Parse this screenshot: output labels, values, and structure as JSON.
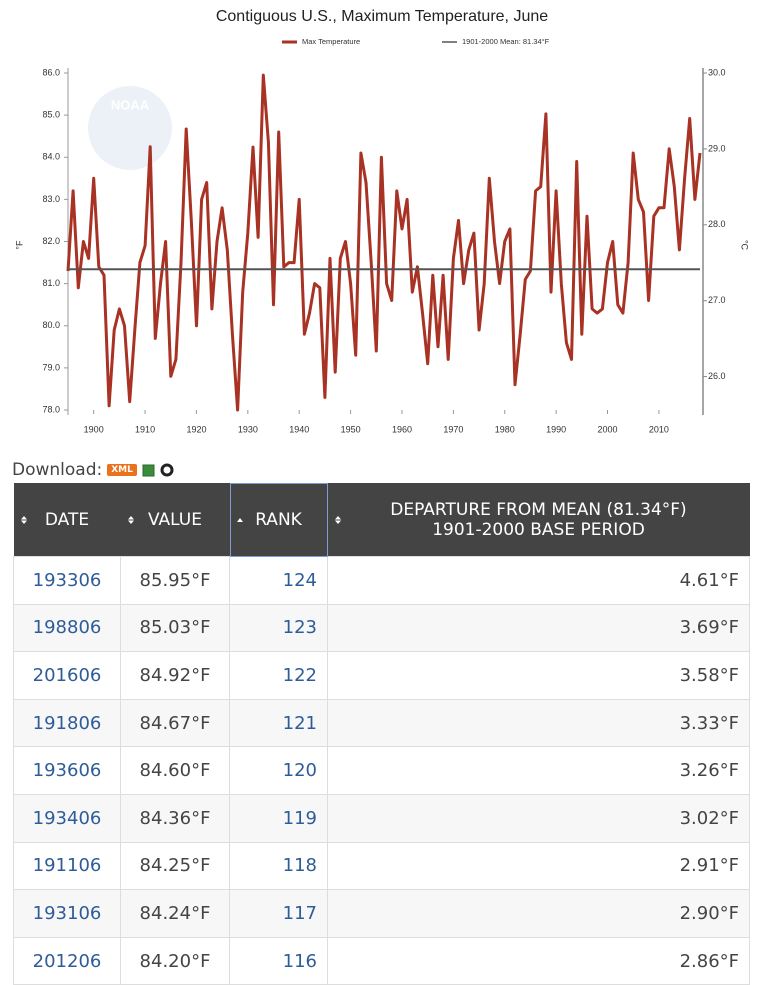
{
  "chart_data": {
    "type": "line",
    "title": "Contiguous U.S., Maximum Temperature, June",
    "ylabel": "°F",
    "y2label": "°C",
    "watermark": "NOAA",
    "x": [
      1895,
      1896,
      1897,
      1898,
      1899,
      1900,
      1901,
      1902,
      1903,
      1904,
      1905,
      1906,
      1907,
      1908,
      1909,
      1910,
      1911,
      1912,
      1913,
      1914,
      1915,
      1916,
      1917,
      1918,
      1919,
      1920,
      1921,
      1922,
      1923,
      1924,
      1925,
      1926,
      1927,
      1928,
      1929,
      1930,
      1931,
      1932,
      1933,
      1934,
      1935,
      1936,
      1937,
      1938,
      1939,
      1940,
      1941,
      1942,
      1943,
      1944,
      1945,
      1946,
      1947,
      1948,
      1949,
      1950,
      1951,
      1952,
      1953,
      1954,
      1955,
      1956,
      1957,
      1958,
      1959,
      1960,
      1961,
      1962,
      1963,
      1964,
      1965,
      1966,
      1967,
      1968,
      1969,
      1970,
      1971,
      1972,
      1973,
      1974,
      1975,
      1976,
      1977,
      1978,
      1979,
      1980,
      1981,
      1982,
      1983,
      1984,
      1985,
      1986,
      1987,
      1988,
      1989,
      1990,
      1991,
      1992,
      1993,
      1994,
      1995,
      1996,
      1997,
      1998,
      1999,
      2000,
      2001,
      2002,
      2003,
      2004,
      2005,
      2006,
      2007,
      2008,
      2009,
      2010,
      2011,
      2012,
      2013,
      2014,
      2015,
      2016,
      2017,
      2018
    ],
    "series": [
      {
        "name": "Max Temperature",
        "color": "#a83223",
        "values": [
          81.3,
          83.2,
          80.9,
          82.0,
          81.6,
          83.5,
          81.4,
          81.2,
          78.1,
          79.9,
          80.4,
          80.0,
          78.2,
          79.9,
          81.5,
          81.9,
          84.25,
          79.7,
          81.0,
          82.0,
          78.8,
          79.2,
          81.5,
          84.67,
          82.5,
          80.0,
          83.0,
          83.4,
          80.4,
          82.0,
          82.8,
          81.8,
          79.8,
          78.0,
          80.8,
          82.2,
          84.24,
          82.1,
          85.95,
          84.36,
          80.5,
          84.6,
          81.4,
          81.5,
          81.5,
          83.0,
          79.8,
          80.3,
          81.0,
          80.9,
          78.3,
          81.6,
          78.9,
          81.6,
          82.0,
          81.0,
          79.3,
          84.1,
          83.4,
          81.5,
          79.4,
          84.0,
          81.0,
          80.6,
          83.2,
          82.3,
          83.0,
          80.8,
          81.4,
          80.3,
          79.1,
          81.2,
          79.5,
          81.2,
          79.2,
          81.6,
          82.5,
          81.0,
          81.8,
          82.2,
          79.9,
          81.0,
          83.5,
          82.0,
          81.0,
          82.0,
          82.3,
          78.6,
          79.8,
          81.1,
          81.3,
          83.2,
          83.3,
          85.03,
          80.8,
          83.2,
          81.0,
          79.6,
          79.2,
          83.9,
          79.8,
          82.6,
          80.4,
          80.3,
          80.4,
          81.5,
          82.0,
          80.5,
          80.3,
          81.5,
          84.1,
          83.0,
          82.7,
          80.6,
          82.6,
          82.8,
          82.8,
          84.2,
          83.3,
          81.8,
          83.5,
          84.92,
          83.0,
          84.1
        ]
      }
    ],
    "mean_value": 81.34,
    "mean_label": "1901-2000 Mean: 81.34°F",
    "mean_color": "#555555",
    "xlim": [
      1895,
      2018
    ],
    "xticks": [
      1900,
      1910,
      1920,
      1930,
      1940,
      1950,
      1960,
      1970,
      1980,
      1990,
      2000,
      2010
    ],
    "ylim": [
      78,
      86
    ],
    "yticks": [
      {
        "value": 78,
        "label": "78.0"
      },
      {
        "value": 79,
        "label": "79.0"
      },
      {
        "value": 80,
        "label": "80.0"
      },
      {
        "value": 81,
        "label": "81.0"
      },
      {
        "value": 82,
        "label": "82.0"
      },
      {
        "value": 83,
        "label": "83.0"
      },
      {
        "value": 84,
        "label": "84.0"
      },
      {
        "value": 85,
        "label": "85.0"
      },
      {
        "value": 86,
        "label": "86.0"
      }
    ],
    "y2lim": [
      25.56,
      30
    ],
    "y2ticks": [
      {
        "value": 26,
        "label": "26.0"
      },
      {
        "value": 27,
        "label": "27.0"
      },
      {
        "value": 28,
        "label": "28.0"
      },
      {
        "value": 29,
        "label": "29.0"
      },
      {
        "value": 30,
        "label": "30.0"
      }
    ],
    "grid": false
  },
  "download": {
    "label": "Download:",
    "xml": "XML"
  },
  "table": {
    "headers": [
      "DATE",
      "VALUE",
      "RANK",
      "DEPARTURE FROM MEAN (81.34°F)"
    ],
    "header_note": "1901-2000 BASE PERIOD",
    "rows": [
      [
        "193306",
        "85.95°F",
        "124",
        "4.61°F"
      ],
      [
        "198806",
        "85.03°F",
        "123",
        "3.69°F"
      ],
      [
        "201606",
        "84.92°F",
        "122",
        "3.58°F"
      ],
      [
        "191806",
        "84.67°F",
        "121",
        "3.33°F"
      ],
      [
        "193606",
        "84.60°F",
        "120",
        "3.26°F"
      ],
      [
        "193406",
        "84.36°F",
        "119",
        "3.02°F"
      ],
      [
        "191106",
        "84.25°F",
        "118",
        "2.91°F"
      ],
      [
        "193106",
        "84.24°F",
        "117",
        "2.90°F"
      ],
      [
        "201206",
        "84.20°F",
        "116",
        "2.86°F"
      ]
    ]
  }
}
